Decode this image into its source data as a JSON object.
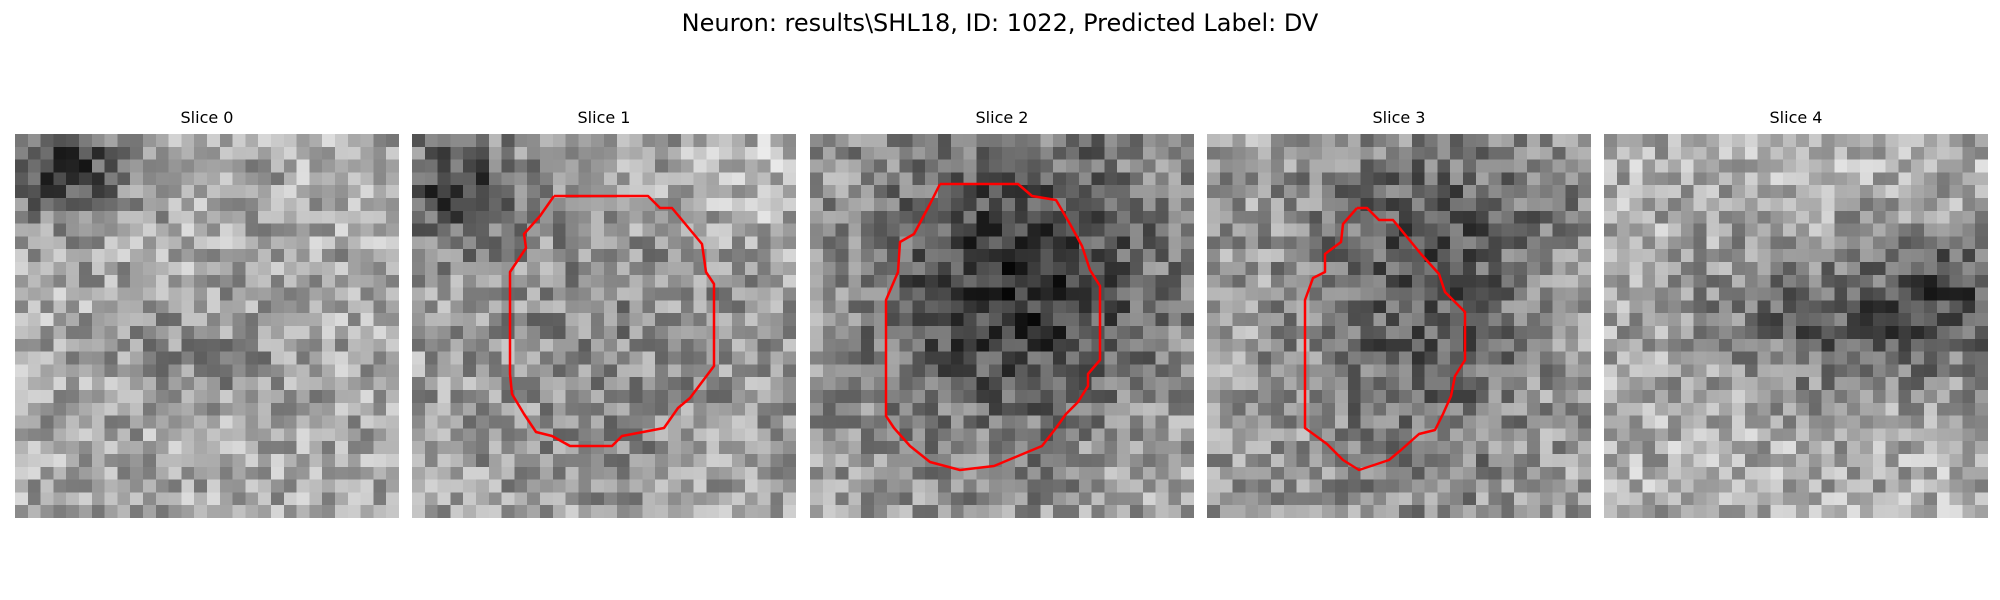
{
  "figure": {
    "title": "Neuron: results\\SHL18, ID: 1022, Predicted Label: DV",
    "contour_color": "#ff0000"
  },
  "slices": [
    {
      "title": "Slice 0",
      "has_contour": false,
      "dark_region": "top-left"
    },
    {
      "title": "Slice 1",
      "has_contour": true,
      "dark_region": "top-left"
    },
    {
      "title": "Slice 2",
      "has_contour": true,
      "dark_region": "center"
    },
    {
      "title": "Slice 3",
      "has_contour": true,
      "dark_region": "center"
    },
    {
      "title": "Slice 4",
      "has_contour": false,
      "dark_region": "center-right"
    }
  ]
}
